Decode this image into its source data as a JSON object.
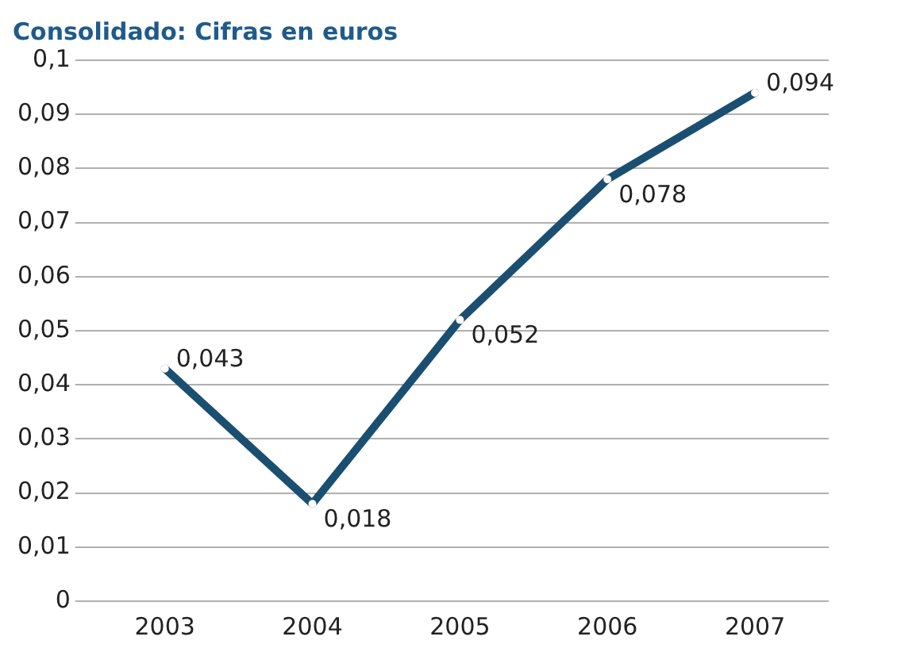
{
  "chart_data": {
    "type": "line",
    "title": "Consolidado: Cifras en euros",
    "categories": [
      "2003",
      "2004",
      "2005",
      "2006",
      "2007"
    ],
    "series": [
      {
        "color": "#1b4f72",
        "values": [
          0.043,
          0.018,
          0.052,
          0.078,
          0.094
        ],
        "value_labels": [
          "0,043",
          "0,018",
          "0,052",
          "0,078",
          "0,094"
        ]
      }
    ],
    "ylim": [
      0,
      0.1
    ],
    "yticks": [
      {
        "value": 0,
        "label": "0"
      },
      {
        "value": 0.01,
        "label": "0,01"
      },
      {
        "value": 0.02,
        "label": "0,02"
      },
      {
        "value": 0.03,
        "label": "0,03"
      },
      {
        "value": 0.04,
        "label": "0,04"
      },
      {
        "value": 0.05,
        "label": "0,05"
      },
      {
        "value": 0.06,
        "label": "0,06"
      },
      {
        "value": 0.07,
        "label": "0,07"
      },
      {
        "value": 0.08,
        "label": "0,08"
      },
      {
        "value": 0.09,
        "label": "0,09"
      },
      {
        "value": 0.1,
        "label": "0,1"
      }
    ],
    "grid": "y",
    "legend": false,
    "marker": "circle",
    "line_style": "solid"
  }
}
